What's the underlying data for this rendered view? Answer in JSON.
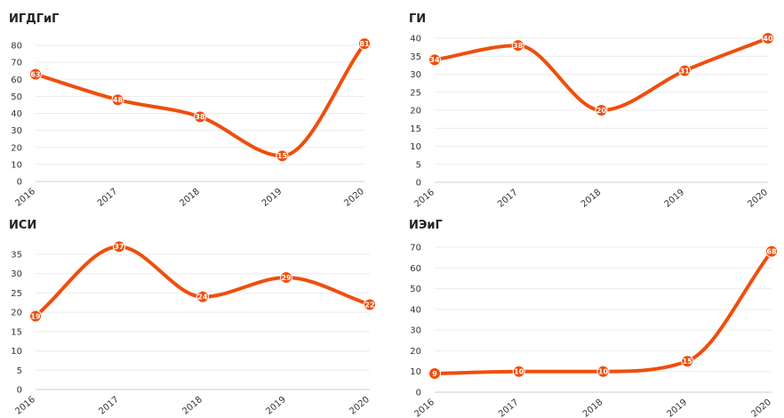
{
  "accent_color": "#f04e0c",
  "chart_data": [
    {
      "type": "line",
      "title": "ИГДГиГ",
      "categories": [
        "2016",
        "2017",
        "2018",
        "2019",
        "2020"
      ],
      "values": [
        63,
        48,
        38,
        15,
        81
      ],
      "ylim": [
        0,
        80
      ],
      "yticks": [
        0,
        10,
        20,
        30,
        40,
        50,
        60,
        70,
        80
      ],
      "grid": true
    },
    {
      "type": "line",
      "title": "ГИ",
      "categories": [
        "2016",
        "2017",
        "2018",
        "2019",
        "2020"
      ],
      "values": [
        34,
        38,
        20,
        31,
        40
      ],
      "ylim": [
        0,
        40
      ],
      "yticks": [
        0,
        5,
        10,
        15,
        20,
        25,
        30,
        35,
        40
      ],
      "grid": true
    },
    {
      "type": "line",
      "title": "ИСИ",
      "categories": [
        "2016",
        "2017",
        "2018",
        "2019",
        "2020"
      ],
      "values": [
        19,
        37,
        24,
        29,
        22
      ],
      "ylim": [
        0,
        35
      ],
      "yticks": [
        0,
        5,
        10,
        15,
        20,
        25,
        30,
        35
      ],
      "grid": true
    },
    {
      "type": "line",
      "title": "ИЭиГ",
      "categories": [
        "2016",
        "2017",
        "2018",
        "2019",
        "2020"
      ],
      "values": [
        9,
        10,
        10,
        15,
        68
      ],
      "ylim": [
        0,
        70
      ],
      "yticks": [
        0,
        10,
        20,
        30,
        40,
        50,
        60,
        70
      ],
      "grid": true
    }
  ]
}
